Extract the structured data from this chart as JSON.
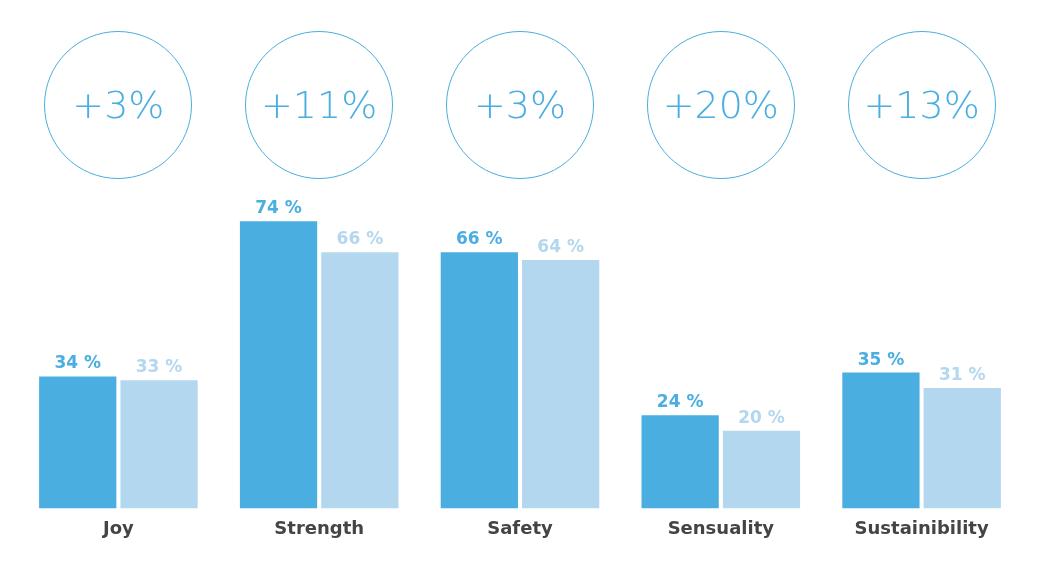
{
  "chart_data": {
    "type": "bar",
    "categories": [
      "Joy",
      "Strength",
      "Safety",
      "Sensuality",
      "Sustainibility"
    ],
    "series": [
      {
        "color": "#4aaee0",
        "values": [
          34,
          74,
          66,
          24,
          35
        ],
        "value_labels": [
          "34 %",
          "74 %",
          "66 %",
          "24 %",
          "35 %"
        ]
      },
      {
        "color": "#b3d7ef",
        "values": [
          33,
          66,
          64,
          20,
          31
        ],
        "value_labels": [
          "33 %",
          "66 %",
          "64 %",
          "20 %",
          "31 %"
        ]
      }
    ],
    "tick_labels": "x",
    "grid": false,
    "legend": false,
    "annotations": [
      "+3%",
      "+11%",
      "+3%",
      "+20%",
      "+13%"
    ]
  }
}
